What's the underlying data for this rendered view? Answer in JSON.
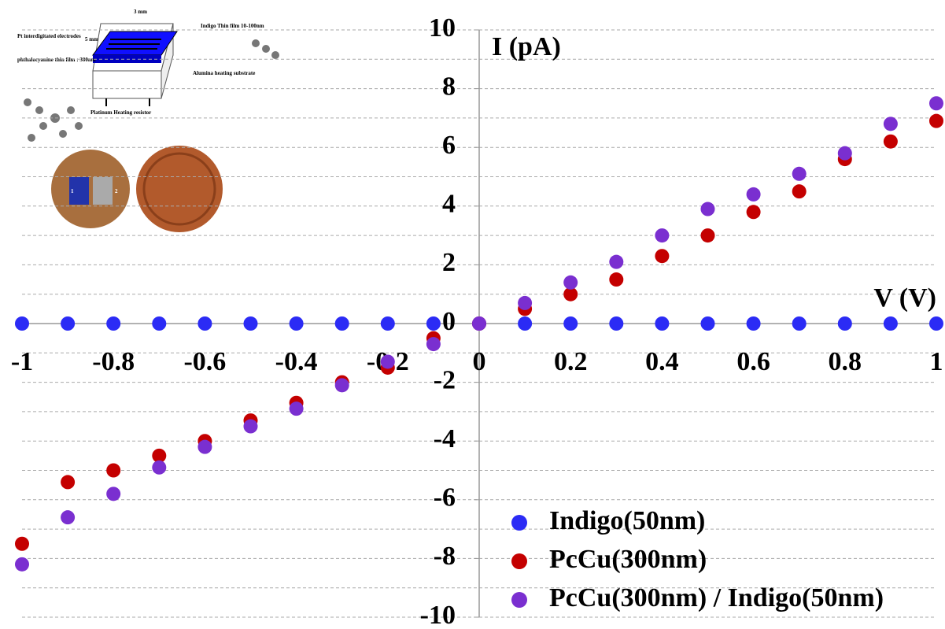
{
  "chart_data": {
    "type": "scatter",
    "x_label": "V (V)",
    "y_label": "I (pA)",
    "x": [
      -1,
      -0.9,
      -0.8,
      -0.7,
      -0.6,
      -0.5,
      -0.4,
      -0.3,
      -0.2,
      -0.1,
      0,
      0.1,
      0.2,
      0.3,
      0.4,
      0.5,
      0.6,
      0.7,
      0.8,
      0.9,
      1
    ],
    "series": [
      {
        "name": "Indigo(50nm)",
        "color": "#2b2bf5",
        "values": [
          0,
          0,
          0,
          0,
          0,
          0,
          0,
          0,
          0,
          0,
          0,
          0,
          0,
          0,
          0,
          0,
          0,
          0,
          0,
          0,
          0
        ]
      },
      {
        "name": "PcCu(300nm)",
        "color": "#c40000",
        "values": [
          -7.5,
          -5.4,
          -5.0,
          -4.5,
          -4.0,
          -3.3,
          -2.7,
          -2.0,
          -1.5,
          -0.5,
          0,
          0.5,
          1.0,
          1.5,
          2.3,
          3.0,
          3.8,
          4.5,
          5.6,
          6.2,
          6.9
        ]
      },
      {
        "name": "PcCu(300nm) / Indigo(50nm)",
        "color": "#7a2fd0",
        "values": [
          -8.2,
          -6.6,
          -5.8,
          -4.9,
          -4.2,
          -3.5,
          -2.9,
          -2.1,
          -1.3,
          -0.7,
          0,
          0.7,
          1.4,
          2.1,
          3.0,
          3.9,
          4.4,
          5.1,
          5.8,
          6.8,
          7.5
        ]
      }
    ],
    "xlim": [
      -1,
      1
    ],
    "xticks": [
      -1,
      -0.8,
      -0.6,
      -0.4,
      -0.2,
      0,
      0.2,
      0.4,
      0.6,
      0.8,
      1
    ],
    "ylim": [
      -10,
      10
    ],
    "yticks": [
      -10,
      -8,
      -6,
      -4,
      -2,
      0,
      2,
      4,
      6,
      8,
      10
    ],
    "yminor": [
      -9,
      -7,
      -5,
      -3,
      -1,
      1,
      3,
      5,
      7,
      9
    ],
    "grid": true,
    "legend": "lower right",
    "inset_labels": [
      "3 mm",
      "5 mm",
      "Pt interdigitated electrodes",
      "Indigo Thin film 10-100nm",
      "phthalocyanine thin film : 300nm",
      "Alumina heating substrate",
      "Platinum Heating resistor",
      "1",
      "2"
    ]
  }
}
